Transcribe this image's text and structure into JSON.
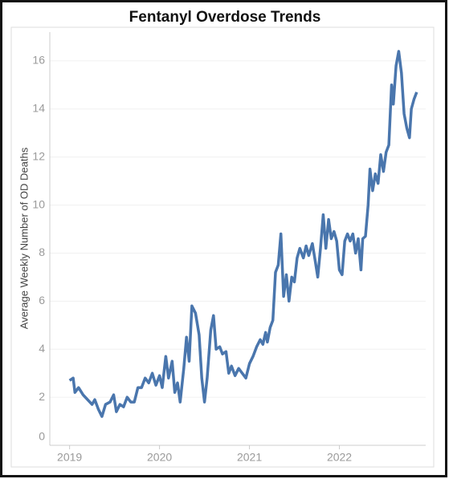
{
  "chart_data": {
    "type": "line",
    "title": "Fentanyl Overdose Trends",
    "y_label": "Average Weekly Number of OD Deaths",
    "xlim": [
      2018.78,
      2022.96
    ],
    "xticks": [
      2019,
      2020,
      2021,
      2022
    ],
    "ylim": [
      0,
      17.2
    ],
    "yticks": [
      0,
      2,
      4,
      6,
      8,
      10,
      12,
      14,
      16
    ],
    "grid": true,
    "series": [
      {
        "color": "#4a76ad",
        "x": [
          2019.0,
          2019.04,
          2019.06,
          2019.1,
          2019.15,
          2019.2,
          2019.25,
          2019.28,
          2019.32,
          2019.36,
          2019.4,
          2019.45,
          2019.49,
          2019.52,
          2019.56,
          2019.6,
          2019.64,
          2019.68,
          2019.72,
          2019.76,
          2019.8,
          2019.84,
          2019.88,
          2019.92,
          2019.96,
          2020.0,
          2020.03,
          2020.07,
          2020.1,
          2020.14,
          2020.17,
          2020.2,
          2020.23,
          2020.27,
          2020.3,
          2020.33,
          2020.36,
          2020.4,
          2020.44,
          2020.47,
          2020.5,
          2020.53,
          2020.57,
          2020.6,
          2020.63,
          2020.67,
          2020.7,
          2020.74,
          2020.77,
          2020.8,
          2020.84,
          2020.88,
          2020.92,
          2020.96,
          2021.0,
          2021.04,
          2021.08,
          2021.12,
          2021.15,
          2021.18,
          2021.2,
          2021.23,
          2021.26,
          2021.29,
          2021.32,
          2021.35,
          2021.38,
          2021.41,
          2021.44,
          2021.47,
          2021.5,
          2021.53,
          2021.56,
          2021.6,
          2021.63,
          2021.66,
          2021.7,
          2021.73,
          2021.76,
          2021.79,
          2021.82,
          2021.85,
          2021.88,
          2021.91,
          2021.94,
          2021.97,
          2022.0,
          2022.03,
          2022.06,
          2022.09,
          2022.12,
          2022.15,
          2022.18,
          2022.21,
          2022.24,
          2022.26,
          2022.29,
          2022.32,
          2022.34,
          2022.37,
          2022.4,
          2022.43,
          2022.46,
          2022.49,
          2022.52,
          2022.55,
          2022.58,
          2022.6,
          2022.63,
          2022.66,
          2022.69,
          2022.72,
          2022.75,
          2022.78,
          2022.8,
          2022.83,
          2022.86
        ],
        "values": [
          2.7,
          2.8,
          2.2,
          2.4,
          2.1,
          1.9,
          1.7,
          1.9,
          1.5,
          1.2,
          1.7,
          1.8,
          2.1,
          1.4,
          1.7,
          1.6,
          2.0,
          1.8,
          1.8,
          2.4,
          2.4,
          2.8,
          2.6,
          3.0,
          2.5,
          2.9,
          2.4,
          3.7,
          2.8,
          3.5,
          2.2,
          2.6,
          1.8,
          3.2,
          4.5,
          3.5,
          5.8,
          5.5,
          4.6,
          2.8,
          1.8,
          2.8,
          4.8,
          5.4,
          4.0,
          4.1,
          3.8,
          3.9,
          3.0,
          3.3,
          2.9,
          3.2,
          3.0,
          2.8,
          3.4,
          3.7,
          4.1,
          4.4,
          4.2,
          4.7,
          4.3,
          4.9,
          5.2,
          7.2,
          7.5,
          8.8,
          6.2,
          7.1,
          6.0,
          7.0,
          6.8,
          7.8,
          8.2,
          7.8,
          8.3,
          7.9,
          8.4,
          7.7,
          7.0,
          8.2,
          9.6,
          8.2,
          9.4,
          8.6,
          8.9,
          8.5,
          7.3,
          7.1,
          8.5,
          8.8,
          8.5,
          8.8,
          8.0,
          8.6,
          7.3,
          8.6,
          8.7,
          10.0,
          11.5,
          10.6,
          11.3,
          10.9,
          12.1,
          11.4,
          12.2,
          12.5,
          15.0,
          14.2,
          15.8,
          16.4,
          15.5,
          13.8,
          13.2,
          12.8,
          14.0,
          14.4,
          14.7
        ]
      }
    ]
  }
}
